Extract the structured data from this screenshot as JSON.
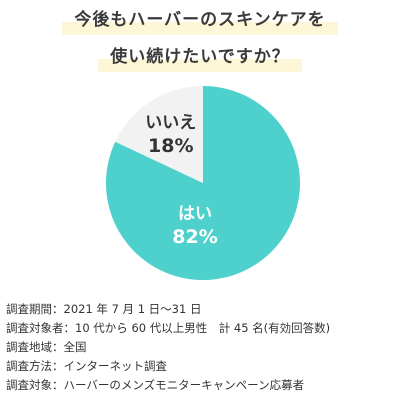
{
  "title": {
    "line1": "今後もハーバーのスキンケアを",
    "line2": "使い続けたいですか？"
  },
  "chart_data": {
    "type": "pie",
    "slices": [
      {
        "label": "はい",
        "value": 82,
        "value_label": "82%",
        "color": "#4ed1cc"
      },
      {
        "label": "いいえ",
        "value": 18,
        "value_label": "18%",
        "color": "#f2f2f2"
      }
    ]
  },
  "survey": [
    {
      "key": "調査期間",
      "value": "2021 年 7 月 1 日〜31 日"
    },
    {
      "key": "調査対象者",
      "value": "10 代から 60 代以上男性　計 45 名(有効回答数)"
    },
    {
      "key": "調査地域",
      "value": "全国"
    },
    {
      "key": "調査方法",
      "value": "インターネット調査"
    },
    {
      "key": "調査対象",
      "value": "ハーバーのメンズモニターキャンペーン応募者"
    }
  ],
  "colors": {
    "yes": "#4ed1cc",
    "no": "#f2f2f2",
    "title_highlight": "#fdf7d8",
    "text": "#333333"
  }
}
